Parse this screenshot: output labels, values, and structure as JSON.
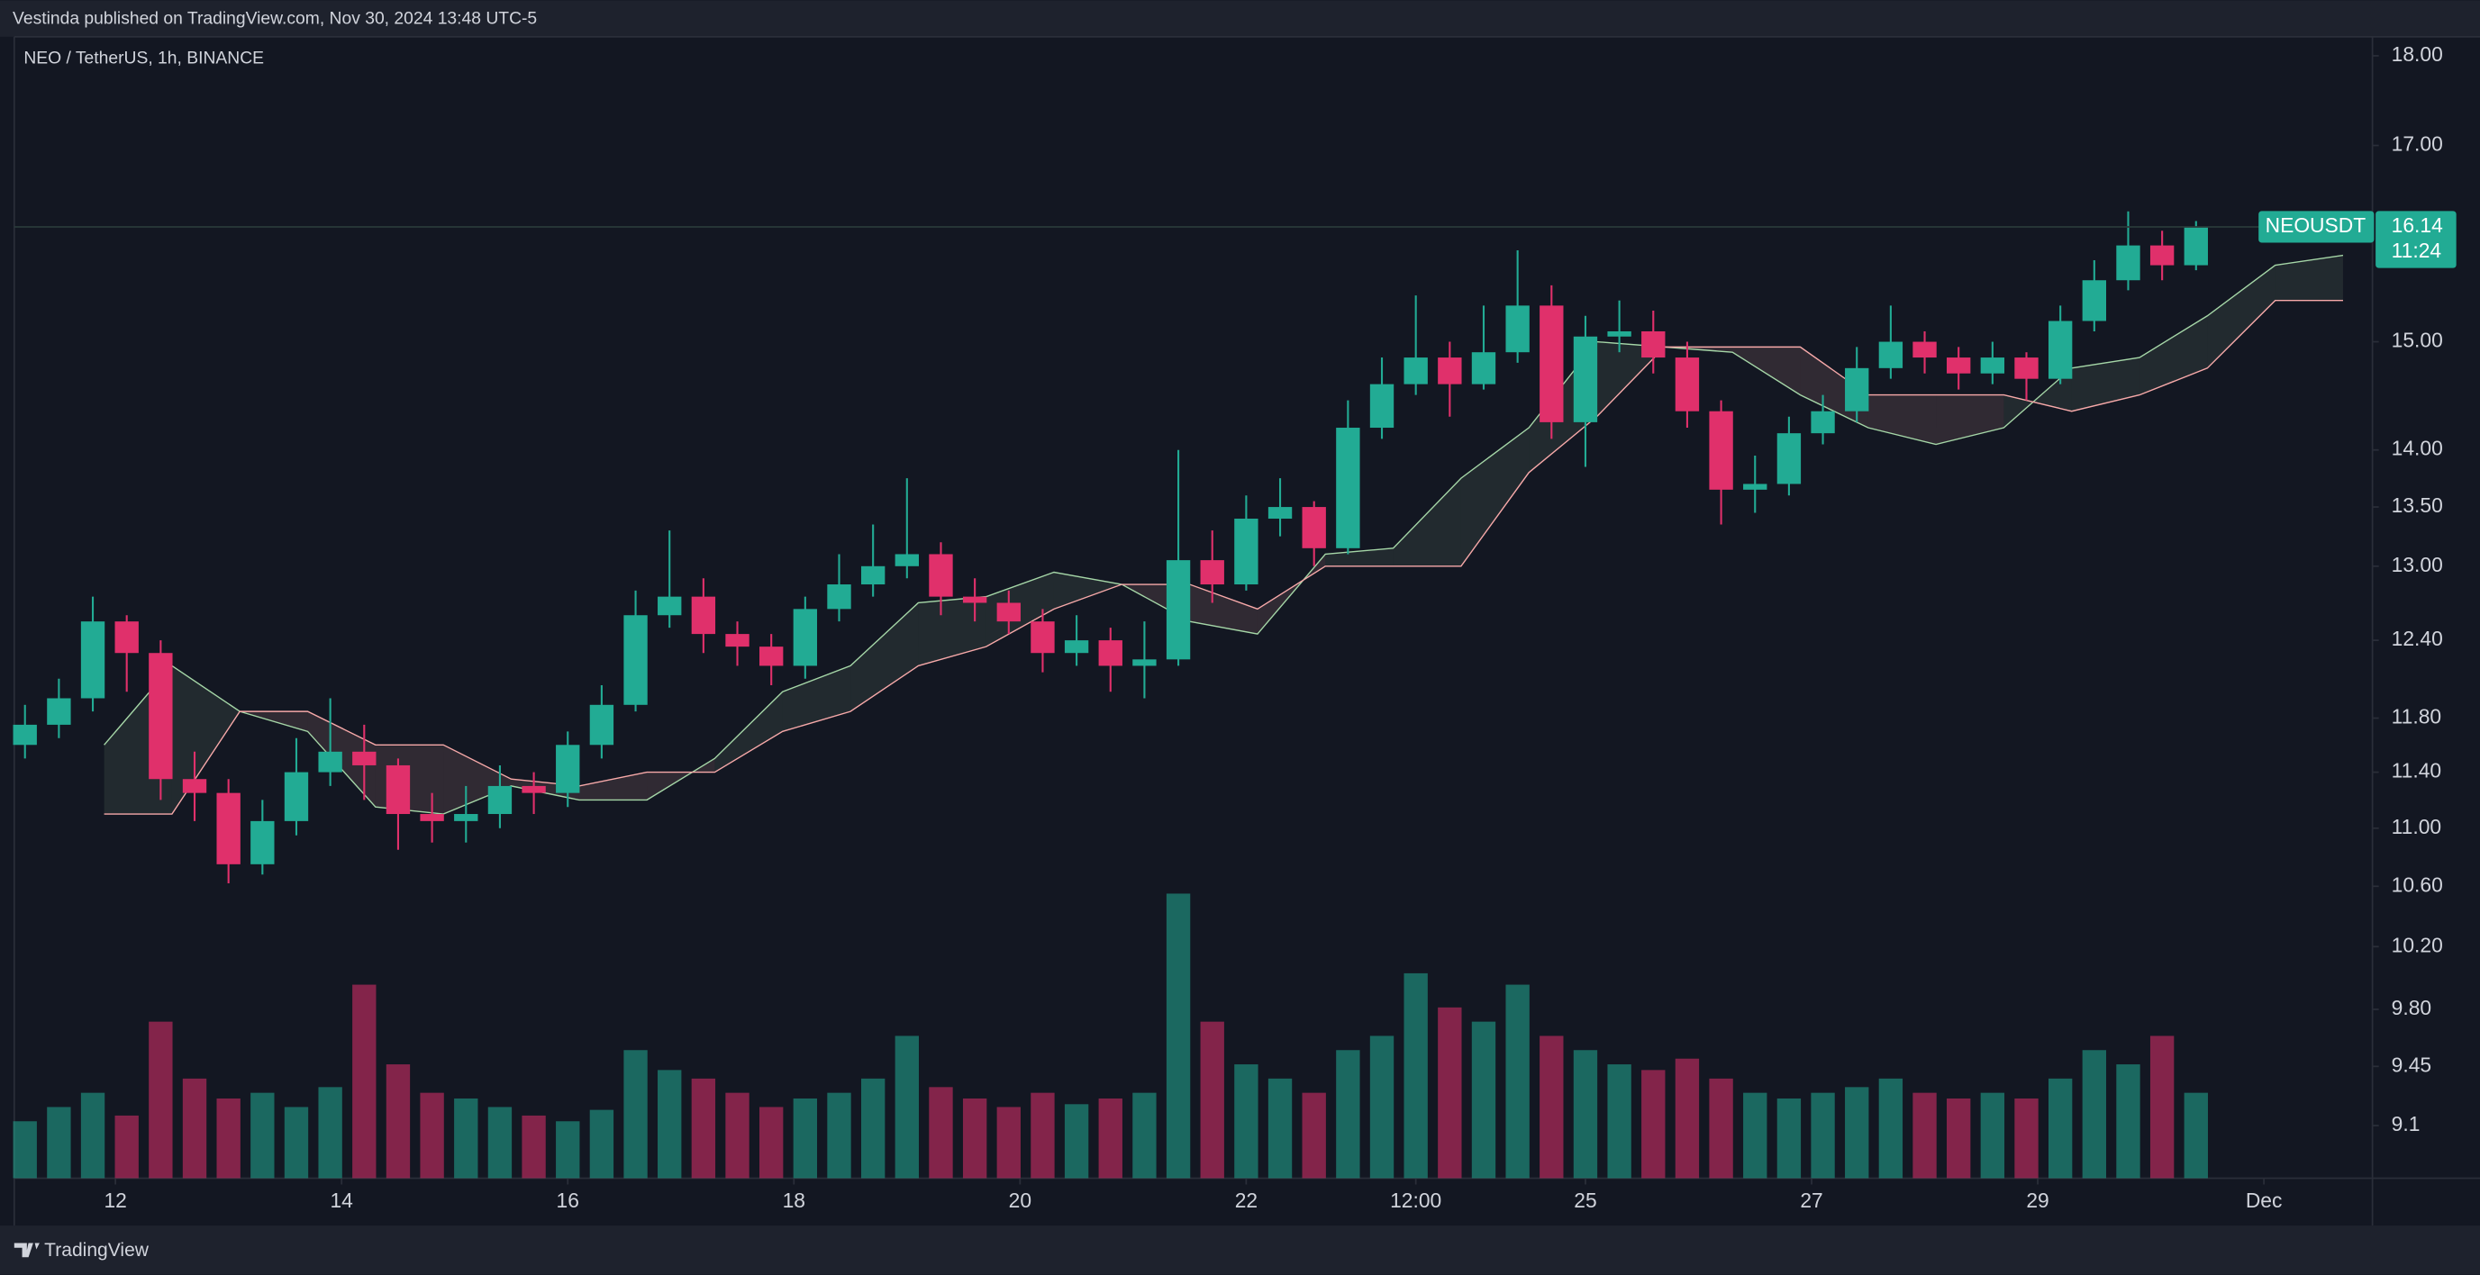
{
  "header": "Vestinda published on TradingView.com, Nov 30, 2024 13:48 UTC-5",
  "footer": "TradingView",
  "chart_data": {
    "type": "candlestick",
    "title": "NEO / TetherUS, 1h, BINANCE",
    "symbol": "NEOUSDT",
    "last_price": 16.14,
    "countdown": "11:24",
    "log_scale": true,
    "grid": false,
    "up_color": "#22ab94",
    "down_color": "#e0306b",
    "cloud_up_color": "#a5d6a7",
    "cloud_down_color": "#f7a9a9",
    "xlim": [
      11.105,
      31.96
    ],
    "xticks": [
      12,
      14,
      16,
      18,
      20,
      22,
      {
        "value": 23.5,
        "label": "12:00"
      },
      25,
      27,
      29,
      {
        "value": 31,
        "label": "Dec"
      }
    ],
    "ylim": [
      8.8,
      18.22
    ],
    "yticks": [
      {
        "value": 18,
        "label": "18.00"
      },
      {
        "value": 17,
        "label": "17.00"
      },
      {
        "value": 15,
        "label": "15.00"
      },
      {
        "value": 14,
        "label": "14.00"
      },
      {
        "value": 13.5,
        "label": "13.50"
      },
      {
        "value": 13,
        "label": "13.00"
      },
      {
        "value": 12.4,
        "label": "12.40"
      },
      {
        "value": 11.8,
        "label": "11.80"
      },
      {
        "value": 11.4,
        "label": "11.40"
      },
      {
        "value": 11,
        "label": "11.00"
      },
      {
        "value": 10.6,
        "label": "10.60"
      },
      {
        "value": 10.2,
        "label": "10.20"
      },
      {
        "value": 9.8,
        "label": "9.80"
      },
      9.45,
      9.1
    ],
    "x": [
      11.2,
      11.5,
      11.8,
      12.1,
      12.4,
      12.7,
      13.0,
      13.3,
      13.6,
      13.9,
      14.2,
      14.5,
      14.8,
      15.1,
      15.4,
      15.7,
      16.0,
      16.3,
      16.6,
      16.9,
      17.2,
      17.5,
      17.8,
      18.1,
      18.4,
      18.7,
      19.0,
      19.3,
      19.6,
      19.9,
      20.2,
      20.5,
      20.8,
      21.1,
      21.4,
      21.7,
      22.0,
      22.3,
      22.6,
      22.9,
      23.2,
      23.5,
      23.8,
      24.1,
      24.4,
      24.7,
      25.0,
      25.3,
      25.6,
      25.9,
      26.2,
      26.5,
      26.8,
      27.1,
      27.4,
      27.7,
      28.0,
      28.3,
      28.6,
      28.9,
      29.2,
      29.5,
      29.8,
      30.1,
      30.4
    ],
    "open": [
      11.6,
      11.75,
      11.95,
      12.55,
      12.3,
      11.35,
      11.25,
      10.75,
      11.05,
      11.4,
      11.55,
      11.45,
      11.1,
      11.05,
      11.1,
      11.3,
      11.25,
      11.6,
      11.9,
      12.6,
      12.75,
      12.45,
      12.35,
      12.2,
      12.65,
      12.85,
      13.0,
      13.1,
      12.75,
      12.7,
      12.55,
      12.3,
      12.4,
      12.2,
      12.25,
      13.05,
      12.85,
      13.4,
      13.5,
      13.15,
      14.2,
      14.6,
      14.85,
      14.6,
      14.9,
      15.35,
      14.25,
      15.05,
      15.1,
      14.85,
      14.35,
      13.65,
      13.7,
      14.15,
      14.35,
      14.75,
      15.0,
      14.85,
      14.7,
      14.85,
      14.65,
      15.2,
      15.6,
      15.95,
      15.75
    ],
    "high": [
      11.9,
      12.1,
      12.75,
      12.6,
      12.4,
      11.55,
      11.35,
      11.2,
      11.65,
      11.95,
      11.75,
      11.5,
      11.25,
      11.3,
      11.45,
      11.4,
      11.7,
      12.05,
      12.8,
      13.3,
      12.9,
      12.55,
      12.45,
      12.75,
      13.1,
      13.35,
      13.75,
      13.2,
      12.9,
      12.8,
      12.65,
      12.6,
      12.5,
      12.55,
      14.0,
      13.3,
      13.6,
      13.75,
      13.55,
      14.45,
      14.85,
      15.45,
      15.0,
      15.35,
      15.9,
      15.55,
      15.25,
      15.4,
      15.3,
      15.0,
      14.45,
      13.95,
      14.3,
      14.5,
      14.95,
      15.35,
      15.1,
      14.95,
      15.0,
      14.9,
      15.35,
      15.8,
      16.3,
      16.1,
      16.2
    ],
    "low": [
      11.5,
      11.65,
      11.85,
      12.0,
      11.2,
      11.05,
      10.62,
      10.68,
      10.95,
      11.3,
      11.2,
      10.85,
      10.9,
      10.9,
      11.0,
      11.1,
      11.15,
      11.5,
      11.85,
      12.5,
      12.3,
      12.2,
      12.05,
      12.1,
      12.55,
      12.75,
      12.9,
      12.6,
      12.55,
      12.45,
      12.15,
      12.2,
      12.0,
      11.95,
      12.2,
      12.7,
      12.8,
      13.25,
      13.0,
      13.1,
      14.1,
      14.5,
      14.3,
      14.55,
      14.8,
      14.1,
      13.85,
      14.9,
      14.7,
      14.2,
      13.35,
      13.45,
      13.6,
      14.05,
      14.25,
      14.65,
      14.7,
      14.55,
      14.6,
      14.45,
      14.6,
      15.1,
      15.5,
      15.6,
      15.7
    ],
    "close": [
      11.75,
      11.95,
      12.55,
      12.3,
      11.35,
      11.25,
      10.75,
      11.05,
      11.4,
      11.55,
      11.45,
      11.1,
      11.05,
      11.1,
      11.3,
      11.25,
      11.6,
      11.9,
      12.6,
      12.75,
      12.45,
      12.35,
      12.2,
      12.65,
      12.85,
      13.0,
      13.1,
      12.75,
      12.7,
      12.55,
      12.3,
      12.4,
      12.2,
      12.25,
      13.05,
      12.85,
      13.4,
      13.5,
      13.15,
      14.2,
      14.6,
      14.85,
      14.6,
      14.9,
      15.35,
      14.25,
      15.05,
      15.1,
      14.85,
      14.35,
      13.65,
      13.7,
      14.15,
      14.35,
      14.75,
      15.0,
      14.85,
      14.7,
      14.85,
      14.65,
      15.2,
      15.6,
      15.95,
      15.75,
      16.14
    ],
    "volume": [
      20,
      25,
      30,
      22,
      55,
      35,
      28,
      30,
      25,
      32,
      68,
      40,
      30,
      28,
      25,
      22,
      20,
      24,
      45,
      38,
      35,
      30,
      25,
      28,
      30,
      35,
      50,
      32,
      28,
      25,
      30,
      26,
      28,
      30,
      100,
      55,
      40,
      35,
      30,
      45,
      50,
      72,
      60,
      55,
      68,
      50,
      45,
      40,
      38,
      42,
      35,
      30,
      28,
      30,
      32,
      35,
      30,
      28,
      30,
      28,
      35,
      45,
      40,
      50,
      30
    ],
    "cloud": {
      "x": [
        11.9,
        12.5,
        13.1,
        13.7,
        14.3,
        14.9,
        15.5,
        16.1,
        16.7,
        17.3,
        17.9,
        18.5,
        19.1,
        19.7,
        20.3,
        20.9,
        21.5,
        22.1,
        22.7,
        23.3,
        23.9,
        24.5,
        25.1,
        25.7,
        26.3,
        26.9,
        27.5,
        28.1,
        28.7,
        29.3,
        29.9,
        30.5,
        31.1,
        31.7
      ],
      "span_a": [
        11.6,
        12.2,
        11.85,
        11.7,
        11.15,
        11.1,
        11.3,
        11.2,
        11.2,
        11.5,
        12.0,
        12.2,
        12.7,
        12.75,
        12.95,
        12.85,
        12.55,
        12.45,
        13.1,
        13.15,
        13.75,
        14.2,
        15.0,
        14.95,
        14.9,
        14.5,
        14.2,
        14.05,
        14.2,
        14.75,
        14.85,
        15.25,
        15.75,
        15.85
      ],
      "span_b": [
        11.1,
        11.1,
        11.85,
        11.85,
        11.6,
        11.6,
        11.35,
        11.3,
        11.4,
        11.4,
        11.7,
        11.85,
        12.2,
        12.35,
        12.65,
        12.85,
        12.85,
        12.65,
        13.0,
        13.0,
        13.0,
        13.8,
        14.3,
        14.95,
        14.95,
        14.95,
        14.5,
        14.5,
        14.5,
        14.35,
        14.5,
        14.75,
        15.4,
        15.4
      ]
    }
  }
}
